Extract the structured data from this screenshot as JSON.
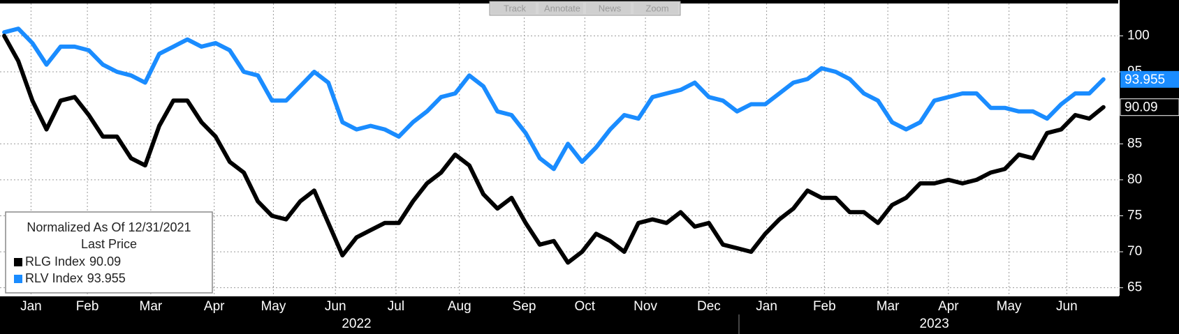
{
  "chart_data": {
    "type": "line",
    "toolbar": [
      "Track",
      "Annotate",
      "News",
      "Zoom"
    ],
    "legend_title": "Normalized As Of 12/31/2021",
    "legend_subtitle": "Last Price",
    "years": [
      {
        "value": 25,
        "label": "2022"
      },
      {
        "value": 66,
        "label": "2023"
      }
    ],
    "xlim": [
      -0.3,
      79.1
    ],
    "xticks": [
      {
        "value": 1.9,
        "label": "Jan"
      },
      {
        "value": 5.9,
        "label": "Feb"
      },
      {
        "value": 10.4,
        "label": "Mar"
      },
      {
        "value": 14.9,
        "label": "Apr"
      },
      {
        "value": 19.1,
        "label": "May"
      },
      {
        "value": 23.5,
        "label": "Jun"
      },
      {
        "value": 27.8,
        "label": "Jul"
      },
      {
        "value": 32.3,
        "label": "Aug"
      },
      {
        "value": 36.9,
        "label": "Sep"
      },
      {
        "value": 41.2,
        "label": "Oct"
      },
      {
        "value": 45.5,
        "label": "Nov"
      },
      {
        "value": 50,
        "label": "Dec"
      },
      {
        "value": 54.1,
        "label": "Jan"
      },
      {
        "value": 58.2,
        "label": "Feb"
      },
      {
        "value": 62.7,
        "label": "Mar"
      },
      {
        "value": 67,
        "label": "Apr"
      },
      {
        "value": 71.3,
        "label": "May"
      },
      {
        "value": 75.4,
        "label": "Jun"
      }
    ],
    "ylim": [
      64,
      104.5
    ],
    "yticks": [
      65,
      70,
      75,
      80,
      85,
      95,
      100
    ],
    "grid": true,
    "series": [
      {
        "name": "RLG Index",
        "color": "#000000",
        "values": [
          100,
          96.5,
          91,
          87,
          91,
          91.5,
          89,
          86,
          86,
          83,
          82,
          87.5,
          91,
          91,
          88,
          86,
          82.5,
          81,
          77,
          75,
          74.5,
          77,
          78.5,
          74,
          69.5,
          72,
          73,
          74,
          74,
          77,
          79.5,
          81,
          83.5,
          82,
          78,
          76,
          77.5,
          74,
          71,
          71.5,
          68.5,
          70,
          72.5,
          71.5,
          70,
          74,
          74.5,
          74,
          75.5,
          73.5,
          74,
          71,
          70.5,
          70,
          72.5,
          74.5,
          76,
          78.5,
          77.5,
          77.5,
          75.5,
          75.5,
          74,
          76.5,
          77.5,
          79.5,
          79.5,
          80,
          79.5,
          80,
          81,
          81.5,
          83.5,
          83,
          86.5,
          87,
          89,
          88.5,
          90.09
        ]
      },
      {
        "name": "RLV Index",
        "color": "#1a8cff",
        "values": [
          100.5,
          101,
          99,
          96,
          98.5,
          98.5,
          98,
          96,
          95,
          94.5,
          93.5,
          97.5,
          98.5,
          99.5,
          98.5,
          99,
          98,
          95,
          94.5,
          91,
          91,
          93,
          95,
          93.5,
          88,
          87,
          87.5,
          87,
          86,
          88,
          89.5,
          91.5,
          92,
          94.5,
          93,
          89.5,
          89,
          86.5,
          83,
          81.5,
          85,
          82.5,
          84.5,
          87,
          89,
          88.5,
          91.5,
          92,
          92.5,
          93.5,
          91.5,
          91,
          89.5,
          90.5,
          90.5,
          92,
          93.5,
          94,
          95.5,
          95,
          94,
          92,
          91,
          88,
          87,
          88,
          91,
          91.5,
          92,
          92,
          90,
          90,
          89.5,
          89.5,
          88.5,
          90.5,
          92,
          92,
          93.955
        ]
      }
    ]
  }
}
